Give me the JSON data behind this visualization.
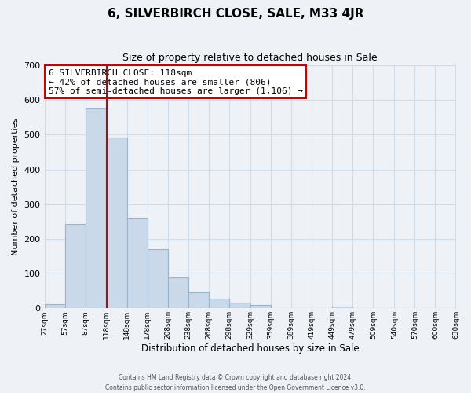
{
  "title": "6, SILVERBIRCH CLOSE, SALE, M33 4JR",
  "subtitle": "Size of property relative to detached houses in Sale",
  "xlabel": "Distribution of detached houses by size in Sale",
  "ylabel": "Number of detached properties",
  "bar_color": "#c9d9ea",
  "bar_edge_color": "#9ab4cc",
  "bins": [
    27,
    57,
    87,
    118,
    148,
    178,
    208,
    238,
    268,
    298,
    329,
    359,
    389,
    419,
    449,
    479,
    509,
    540,
    570,
    600,
    630
  ],
  "counts": [
    12,
    244,
    575,
    492,
    260,
    170,
    88,
    47,
    27,
    17,
    10,
    0,
    0,
    0,
    5,
    0,
    0,
    0,
    0,
    0
  ],
  "tick_labels": [
    "27sqm",
    "57sqm",
    "87sqm",
    "118sqm",
    "148sqm",
    "178sqm",
    "208sqm",
    "238sqm",
    "268sqm",
    "298sqm",
    "329sqm",
    "359sqm",
    "389sqm",
    "419sqm",
    "449sqm",
    "479sqm",
    "509sqm",
    "540sqm",
    "570sqm",
    "600sqm",
    "630sqm"
  ],
  "vline_x": 118,
  "vline_color": "#cc0000",
  "ylim": [
    0,
    700
  ],
  "yticks": [
    0,
    100,
    200,
    300,
    400,
    500,
    600,
    700
  ],
  "annotation_text": "6 SILVERBIRCH CLOSE: 118sqm\n← 42% of detached houses are smaller (806)\n57% of semi-detached houses are larger (1,106) →",
  "annotation_box_color": "#ffffff",
  "annotation_box_edge": "#cc0000",
  "footer_line1": "Contains HM Land Registry data © Crown copyright and database right 2024.",
  "footer_line2": "Contains public sector information licensed under the Open Government Licence v3.0.",
  "background_color": "#eef2f7",
  "grid_color": "#d0dce8"
}
